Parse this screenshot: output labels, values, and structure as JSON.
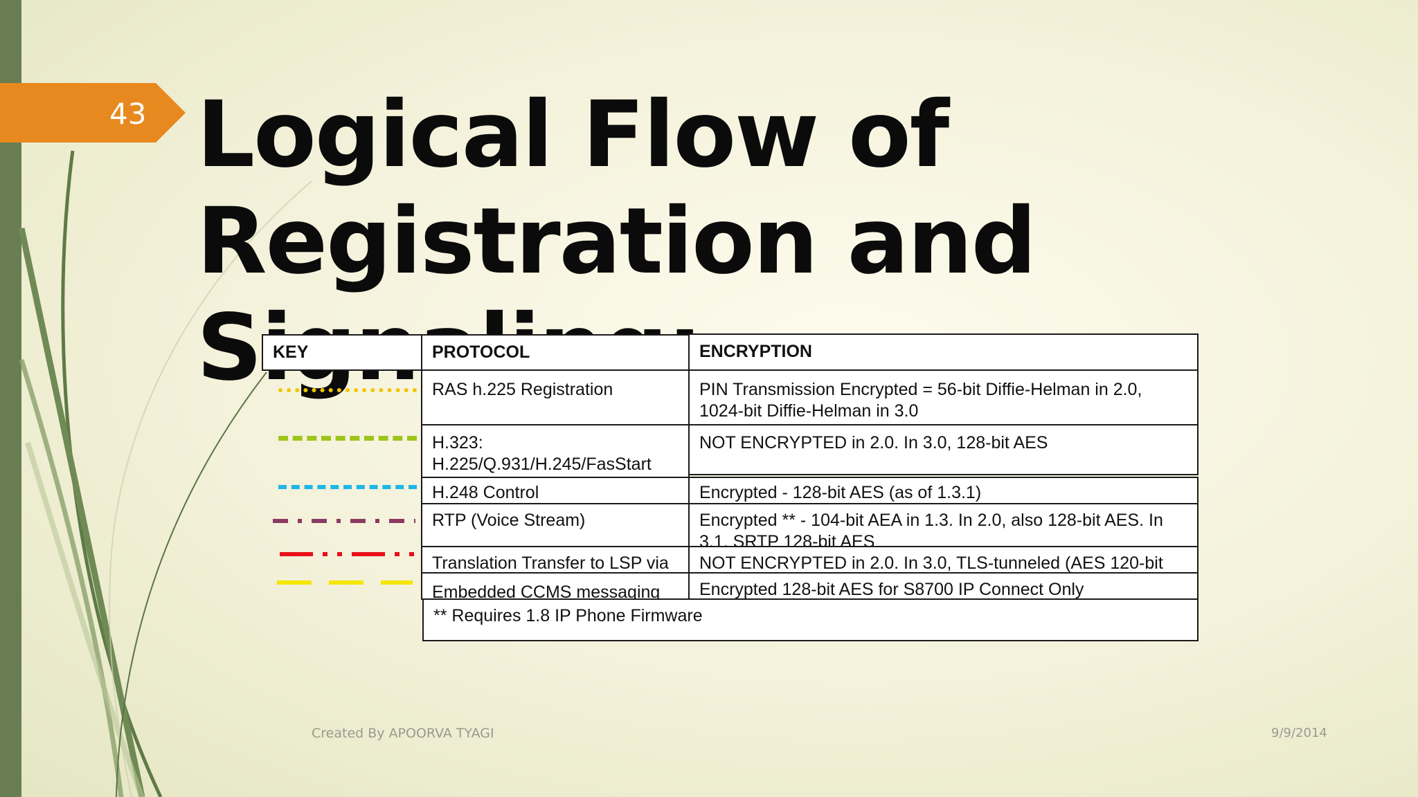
{
  "slide_number": "43",
  "title": "Logical Flow of Registration and Signaling:",
  "table": {
    "headers": {
      "key": "KEY",
      "protocol": "PROTOCOL",
      "encryption": "ENCRYPTION"
    },
    "rows": [
      {
        "key_color": "#f2c500",
        "key_style": "dotted",
        "protocol": "RAS h.225 Registration",
        "encryption": "PIN Transmission Encrypted = 56-bit Diffie-Helman in 2.0, 1024-bit Diffie-Helman in 3.0"
      },
      {
        "key_color": "#9ec51b",
        "key_style": "long-dash",
        "protocol": "H.323: H.225/Q.931/H.245/FasStart",
        "encryption": "NOT ENCRYPTED in 2.0. In 3.0, 128-bit AES"
      },
      {
        "key_color": "#1fb6e8",
        "key_style": "dash",
        "protocol": "H.248 Control",
        "encryption": "Encrypted - 128-bit AES (as of 1.3.1)"
      },
      {
        "key_color": "#8b3a62",
        "key_style": "dash-dot",
        "protocol": "RTP (Voice Stream)",
        "encryption": "Encrypted ** - 104-bit AEA in 1.3. In 2.0, also 128-bit AES. In 3.1, SRTP 128-bit AES"
      },
      {
        "key_color": "#e8101a",
        "key_style": "dash-dot-dot",
        "protocol": "Translation  Transfer to LSP via",
        "encryption": "NOT ENCRYPTED in 2.0. In 3.0, TLS-tunneled (AES 120-bit"
      },
      {
        "key_color": "#f5e600",
        "key_style": "dash",
        "protocol": "Embedded CCMS messaging",
        "encryption": "Encrypted 128-bit AES for S8700 IP Connect Only"
      }
    ],
    "footnote": "** Requires 1.8 IP Phone Firmware"
  },
  "footer": {
    "author": "Created By APOORVA TYAGI",
    "date": "9/9/2014"
  }
}
